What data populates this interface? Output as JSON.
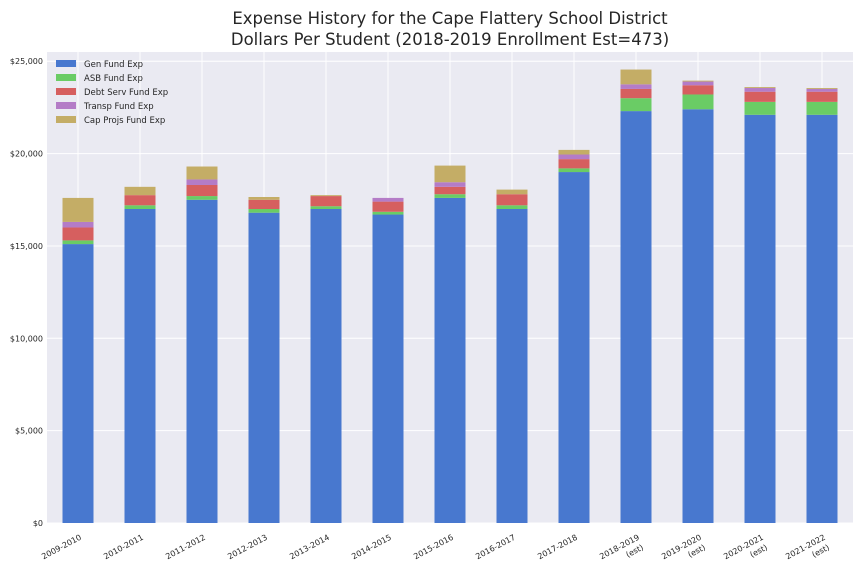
{
  "chart_data": {
    "type": "bar",
    "stacked": true,
    "title": "Expense History for the Cape Flattery School District",
    "subtitle": "Dollars Per Student (2018-2019 Enrollment Est=473)",
    "xlabel": "",
    "ylabel": "",
    "ylim": [
      0,
      25500
    ],
    "yticks": [
      0,
      5000,
      10000,
      15000,
      20000,
      25000
    ],
    "ytick_labels": [
      "$0",
      "$5,000",
      "$10,000",
      "$15,000",
      "$20,000",
      "$25,000"
    ],
    "grid": true,
    "legend_position": "top-left",
    "categories": [
      [
        "2009-2010"
      ],
      [
        "2010-2011"
      ],
      [
        "2011-2012"
      ],
      [
        "2012-2013"
      ],
      [
        "2013-2014"
      ],
      [
        "2014-2015"
      ],
      [
        "2015-2016"
      ],
      [
        "2016-2017"
      ],
      [
        "2017-2018"
      ],
      [
        "2018-2019",
        "(est)"
      ],
      [
        "2019-2020",
        "(est)"
      ],
      [
        "2020-2021",
        "(est)"
      ],
      [
        "2021-2022",
        "(est)"
      ]
    ],
    "series": [
      {
        "name": "Gen Fund Exp",
        "color": "#4878cf",
        "values": [
          15100,
          17000,
          17500,
          16800,
          17000,
          16700,
          17600,
          17000,
          19000,
          22300,
          22400,
          22100,
          22100
        ]
      },
      {
        "name": "ASB Fund Exp",
        "color": "#6acc65",
        "values": [
          200,
          200,
          200,
          200,
          150,
          150,
          200,
          200,
          200,
          700,
          800,
          700,
          700
        ]
      },
      {
        "name": "Debt Serv Fund Exp",
        "color": "#d65f5f",
        "values": [
          700,
          550,
          600,
          500,
          550,
          550,
          400,
          600,
          500,
          500,
          500,
          550,
          550
        ]
      },
      {
        "name": "Transp Fund Exp",
        "color": "#b47cc7",
        "values": [
          300,
          0,
          300,
          0,
          0,
          200,
          250,
          0,
          250,
          250,
          200,
          200,
          150
        ]
      },
      {
        "name": "Cap Projs Fund Exp",
        "color": "#c4ad66",
        "values": [
          1300,
          450,
          700,
          150,
          50,
          0,
          900,
          250,
          250,
          800,
          50,
          50,
          50
        ]
      }
    ]
  }
}
